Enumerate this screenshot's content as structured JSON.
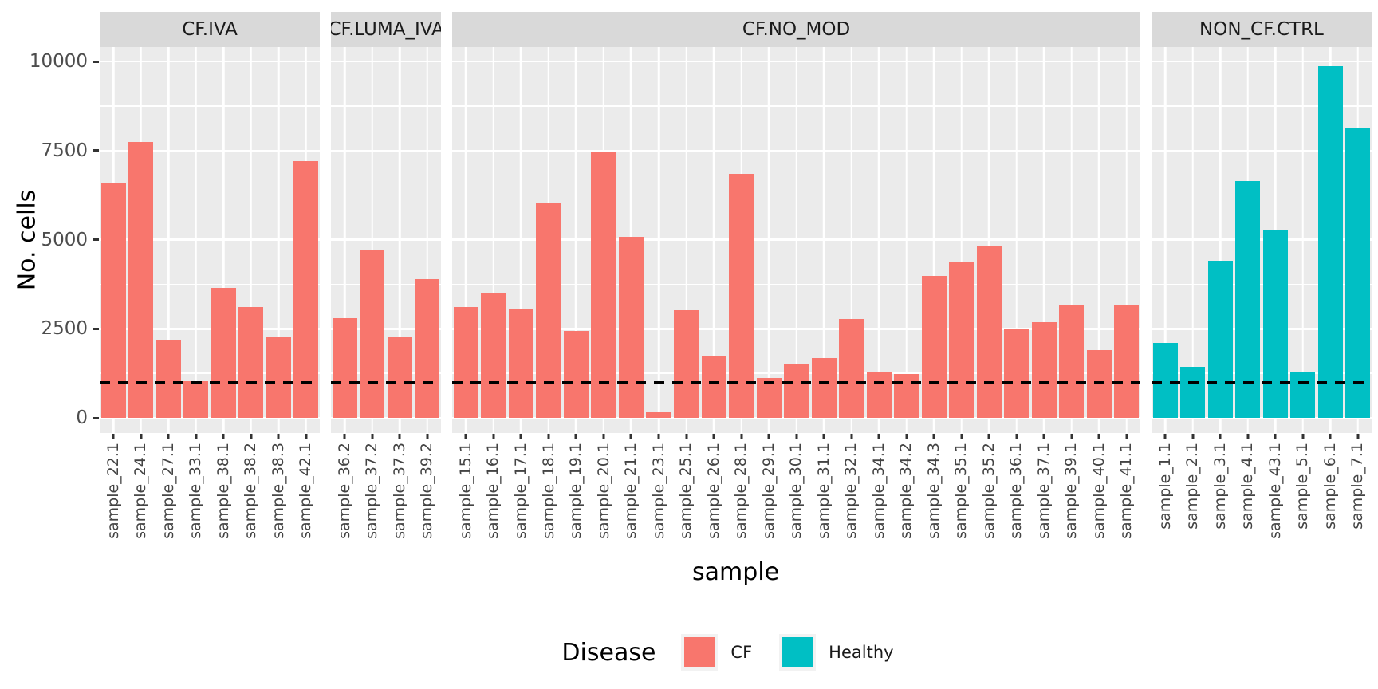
{
  "figure": {
    "background": "#FFFFFF",
    "panel_background": "#EBEBEB",
    "strip_background": "#D9D9D9",
    "grid_color": "#FFFFFF",
    "axis_text_color": "#4D4D4D"
  },
  "chart_data": {
    "type": "bar",
    "title": "",
    "xlabel": "sample",
    "ylabel": "No. cells",
    "ylim": [
      0,
      10000
    ],
    "yticks": [
      0,
      2500,
      5000,
      7500,
      10000
    ],
    "ytick_labels": [
      "0",
      "2500",
      "5000",
      "7500",
      "10000"
    ],
    "grid": "major+minor white on grey panel",
    "reference_line": {
      "y": 1000,
      "style": "dashed",
      "color": "#000000"
    },
    "legend": {
      "title": "Disease",
      "position": "bottom",
      "entries": [
        {
          "label": "CF",
          "color": "#F8766D"
        },
        {
          "label": "Healthy",
          "color": "#00BFC4"
        }
      ]
    },
    "facets": [
      {
        "label": "CF.IVA",
        "group": "CF",
        "color": "#F8766D",
        "categories": [
          "sample_22.1",
          "sample_24.1",
          "sample_27.1",
          "sample_33.1",
          "sample_38.1",
          "sample_38.2",
          "sample_38.3",
          "sample_42.1"
        ],
        "values": [
          6600,
          7750,
          2200,
          1020,
          3650,
          3100,
          2250,
          7200
        ]
      },
      {
        "label": "CF.LUMA_IVA",
        "group": "CF",
        "color": "#F8766D",
        "categories": [
          "sample_36.2",
          "sample_37.2",
          "sample_37.3",
          "sample_39.2"
        ],
        "values": [
          2800,
          4700,
          2250,
          3900
        ]
      },
      {
        "label": "CF.NO_MOD",
        "group": "CF",
        "color": "#F8766D",
        "categories": [
          "sample_15.1",
          "sample_16.1",
          "sample_17.1",
          "sample_18.1",
          "sample_19.1",
          "sample_20.1",
          "sample_21.1",
          "sample_23.1",
          "sample_25.1",
          "sample_26.1",
          "sample_28.1",
          "sample_29.1",
          "sample_30.1",
          "sample_31.1",
          "sample_32.1",
          "sample_34.1",
          "sample_34.2",
          "sample_34.3",
          "sample_35.1",
          "sample_35.2",
          "sample_36.1",
          "sample_37.1",
          "sample_39.1",
          "sample_40.1",
          "sample_41.1"
        ],
        "values": [
          3100,
          3500,
          3050,
          6050,
          2450,
          7480,
          5070,
          150,
          3030,
          1750,
          6850,
          1130,
          1520,
          1670,
          2770,
          1300,
          1230,
          3980,
          4370,
          4800,
          2500,
          2690,
          3180,
          1900,
          3150
        ]
      },
      {
        "label": "NON_CF.CTRL",
        "group": "Healthy",
        "color": "#00BFC4",
        "categories": [
          "sample_1.1",
          "sample_2.1",
          "sample_3.1",
          "sample_4.1",
          "sample_43.1",
          "sample_5.1",
          "sample_6.1",
          "sample_7.1"
        ],
        "values": [
          2100,
          1440,
          4400,
          6650,
          5270,
          1300,
          9870,
          8150
        ]
      }
    ]
  }
}
